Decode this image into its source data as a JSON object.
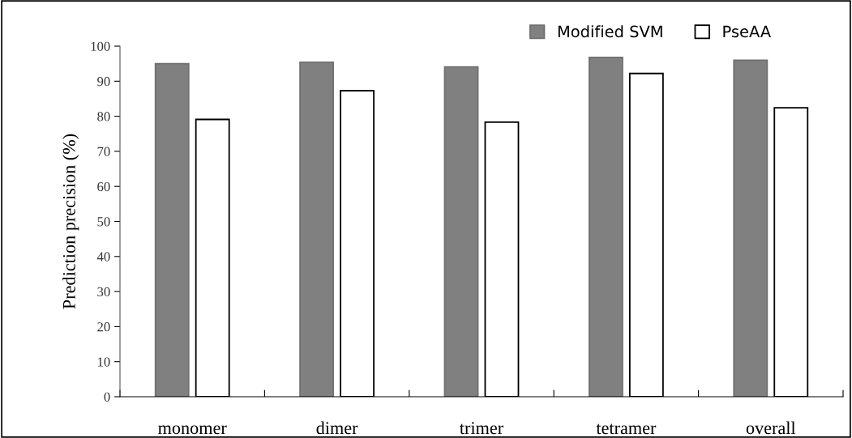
{
  "chart_data": {
    "type": "bar",
    "ylabel": "Prediction precision (%)",
    "categories": [
      "monomer",
      "dimer",
      "trimer",
      "tetramer",
      "overall"
    ],
    "series": [
      {
        "name": "Modified SVM",
        "color": "#808080",
        "values": [
          95,
          95.4,
          94.1,
          96.8,
          96.0
        ]
      },
      {
        "name": "PseAA",
        "color": "#ffffff",
        "values": [
          79.1,
          87.3,
          78.3,
          92.2,
          82.4
        ]
      }
    ],
    "ylim": [
      0,
      100
    ],
    "yticks": [
      0,
      10,
      20,
      30,
      40,
      50,
      60,
      70,
      80,
      90,
      100
    ],
    "grid": false,
    "legend": "top right"
  }
}
